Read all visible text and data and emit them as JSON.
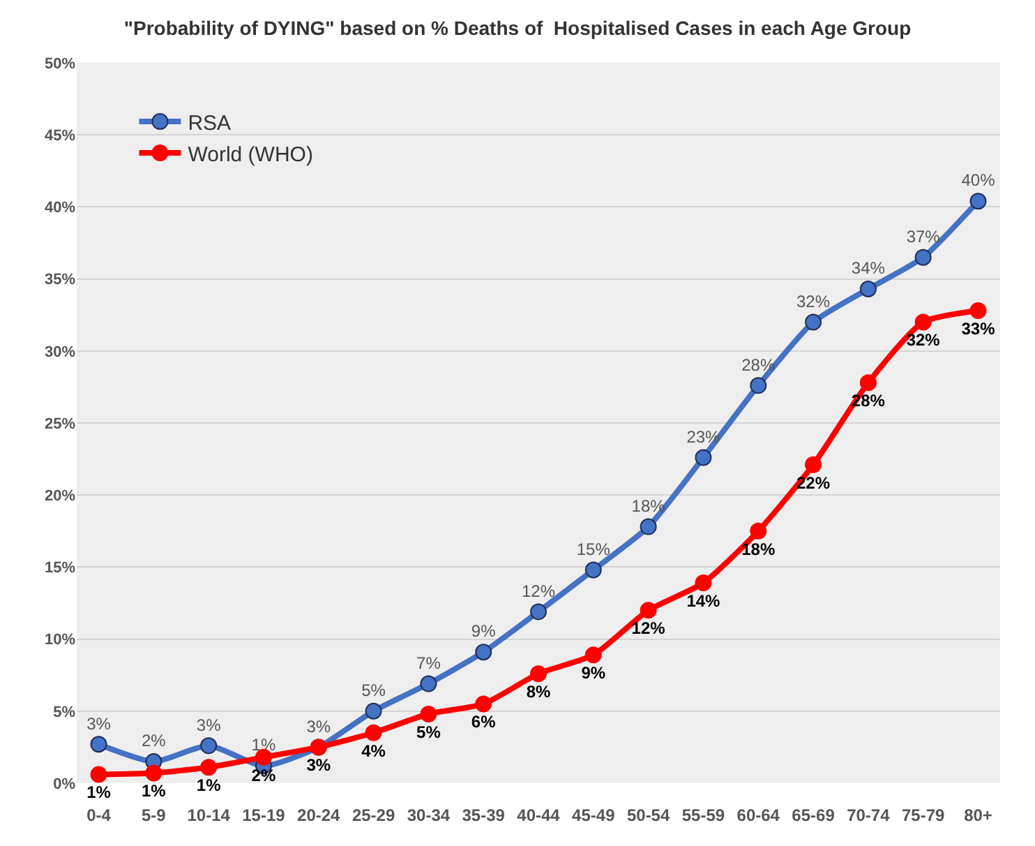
{
  "chart_data": {
    "type": "line",
    "title": "\"Probability of DYING\" based on % Deaths of  Hospitalised Cases in each Age Group",
    "categories": [
      "0-4",
      "5-9",
      "10-14",
      "15-19",
      "20-24",
      "25-29",
      "30-34",
      "35-39",
      "40-44",
      "45-49",
      "50-54",
      "55-59",
      "60-64",
      "65-69",
      "70-74",
      "75-79",
      "80+"
    ],
    "series": [
      {
        "name": "RSA",
        "color": "#4472c4",
        "values": [
          2.7,
          1.5,
          2.6,
          1.2,
          2.5,
          5.0,
          6.9,
          9.1,
          11.9,
          14.8,
          17.8,
          22.6,
          27.6,
          32.0,
          34.3,
          36.5,
          40.4
        ],
        "value_labels": [
          "3%",
          "2%",
          "3%",
          "1%",
          "3%",
          "5%",
          "7%",
          "9%",
          "12%",
          "15%",
          "18%",
          "23%",
          "28%",
          "32%",
          "34%",
          "37%",
          "40%"
        ]
      },
      {
        "name": "World (WHO)",
        "color": "#ff0000",
        "values": [
          0.6,
          0.7,
          1.1,
          1.8,
          2.5,
          3.5,
          4.8,
          5.5,
          7.6,
          8.9,
          12.0,
          13.9,
          17.5,
          22.1,
          27.8,
          32.0,
          32.8
        ],
        "value_labels": [
          "1%",
          "1%",
          "1%",
          "2%",
          "3%",
          "4%",
          "5%",
          "6%",
          "8%",
          "9%",
          "12%",
          "14%",
          "18%",
          "22%",
          "28%",
          "32%",
          "33%"
        ]
      }
    ],
    "ylim": [
      0,
      50
    ],
    "yticks": [
      {
        "value": 0,
        "label": "0%"
      },
      {
        "value": 5,
        "label": "5%"
      },
      {
        "value": 10,
        "label": "10%"
      },
      {
        "value": 15,
        "label": "15%"
      },
      {
        "value": 20,
        "label": "20%"
      },
      {
        "value": 25,
        "label": "25%"
      },
      {
        "value": 30,
        "label": "30%"
      },
      {
        "value": 35,
        "label": "35%"
      },
      {
        "value": 40,
        "label": "40%"
      },
      {
        "value": 45,
        "label": "45%"
      },
      {
        "value": 50,
        "label": "50%"
      }
    ],
    "grid": "y",
    "legend": "top left",
    "marker": "circle",
    "line_style": "solid"
  }
}
